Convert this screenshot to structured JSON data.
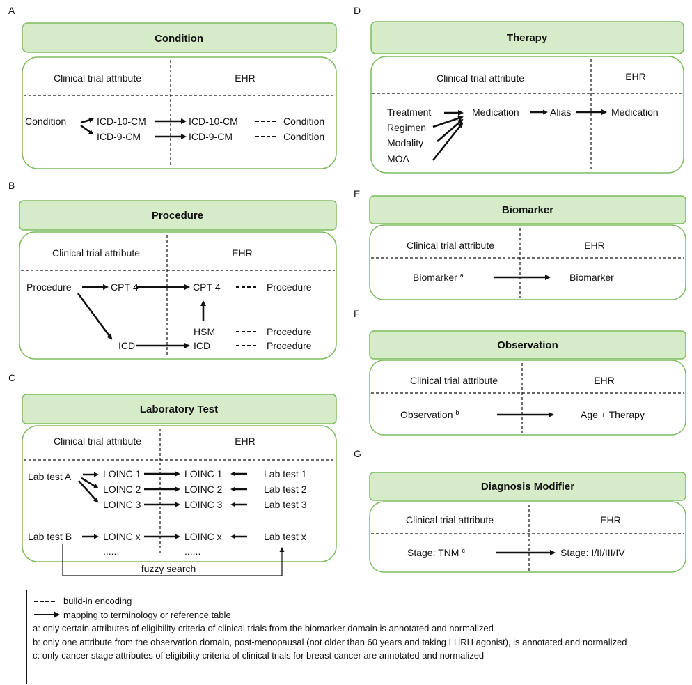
{
  "panels": {
    "A": {
      "letter": "A",
      "title": "Condition",
      "col_left": "Clinical trial attribute",
      "col_right": "EHR",
      "source": "Condition",
      "icd10": "ICD-10-CM",
      "icd9": "ICD-9-CM",
      "icd10_ehr": "ICD-10-CM",
      "icd9_ehr": "ICD-9-CM",
      "target1": "Condition",
      "target2": "Condition"
    },
    "B": {
      "letter": "B",
      "title": "Procedure",
      "col_left": "Clinical trial attribute",
      "col_right": "EHR",
      "source": "Procedure",
      "cpt": "CPT-4",
      "cpt_ehr": "CPT-4",
      "target_cpt": "Procedure",
      "hsm": "HSM",
      "target_hsm": "Procedure",
      "icd": "ICD",
      "icd_ehr": "ICD",
      "target_icd": "Procedure"
    },
    "C": {
      "letter": "C",
      "title": "Laboratory Test",
      "col_left": "Clinical trial attribute",
      "col_right": "EHR",
      "lab_a": "Lab test A",
      "lab_b": "Lab test B",
      "loinc_left": [
        "LOINC 1",
        "LOINC 2",
        "LOINC 3"
      ],
      "loinc_mid": [
        "LOINC 1",
        "LOINC 2",
        "LOINC 3"
      ],
      "lab_right": [
        "Lab test 1",
        "Lab test 2",
        "Lab test 3"
      ],
      "loinc_x": "LOINC x",
      "loinc_x_ehr": "LOINC x",
      "lab_x": "Lab test x",
      "ellipsis_left": "......",
      "ellipsis_mid": "......",
      "fuzzy": "fuzzy search"
    },
    "D": {
      "letter": "D",
      "title": "Therapy",
      "col_left": "Clinical trial attribute",
      "col_right": "EHR",
      "sources": [
        "Treatment",
        "Regimen",
        "Modality",
        "MOA"
      ],
      "medication": "Medication",
      "alias": "Alias",
      "medication_ehr": "Medication"
    },
    "E": {
      "letter": "E",
      "title": "Biomarker",
      "col_left": "Clinical trial attribute",
      "col_right": "EHR",
      "source": "Biomarker",
      "source_sup": "a",
      "target": "Biomarker"
    },
    "F": {
      "letter": "F",
      "title": "Observation",
      "col_left": "Clinical trial attribute",
      "col_right": "EHR",
      "source": "Observation",
      "source_sup": "b",
      "target": "Age + Therapy"
    },
    "G": {
      "letter": "G",
      "title": "Diagnosis Modifier",
      "col_left": "Clinical trial attribute",
      "col_right": "EHR",
      "source": "Stage: TNM",
      "source_sup": "c",
      "target": "Stage: I/II/III/IV"
    }
  },
  "legend": {
    "dashed": "build-in encoding",
    "solid": "mapping to terminology or reference table",
    "note_a": "a: only certain attributes of eligibility criteria of clinical trials from the biomarker domain is annotated and normalized",
    "note_b": "b: only one attribute from the observation domain, post-menopausal (not older than 60 years and taking LHRH agonist), is annotated and normalized",
    "note_c": "c: only cancer stage attributes of eligibility criteria of clinical trials for breast cancer are annotated and normalized"
  },
  "colors": {
    "header_fill": "#d6ecc9",
    "border": "#7dbb5f"
  }
}
